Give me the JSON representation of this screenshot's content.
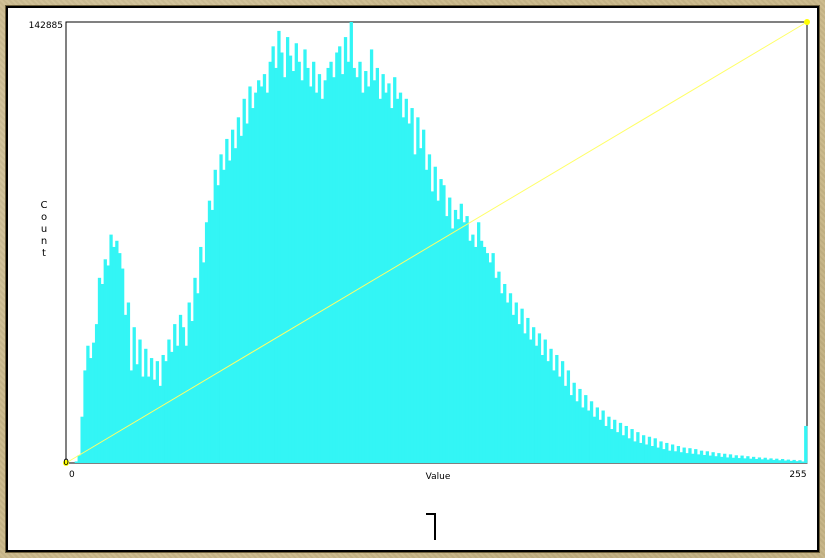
{
  "chart_data": {
    "type": "bar",
    "xlabel": "Value",
    "ylabel": "Count",
    "x_range": [
      0,
      255
    ],
    "y_range": [
      0,
      142885
    ],
    "x_tick_labels": [
      "0",
      "255"
    ],
    "y_tick_labels": [
      "0",
      "142885"
    ],
    "bar_color": "#33f5f5",
    "curve_color": "#ffff66",
    "curve": [
      [
        0,
        0
      ],
      [
        255,
        142885
      ]
    ],
    "series": [
      {
        "values": [
          0,
          0,
          0,
          500,
          2500,
          15000,
          30000,
          38000,
          34000,
          39000,
          45000,
          60000,
          58000,
          66000,
          64000,
          74000,
          70000,
          72000,
          68000,
          63000,
          48000,
          52000,
          30000,
          44000,
          32000,
          40000,
          28000,
          37000,
          28000,
          34000,
          27000,
          33000,
          25000,
          35000,
          33000,
          40000,
          36000,
          45000,
          38000,
          48000,
          44000,
          38000,
          52000,
          46000,
          60000,
          55000,
          70000,
          65000,
          78000,
          85000,
          82000,
          95000,
          90000,
          100000,
          95000,
          105000,
          98000,
          108000,
          102000,
          112000,
          106000,
          118000,
          110000,
          122000,
          115000,
          120000,
          124000,
          122000,
          126000,
          120000,
          130000,
          135000,
          128000,
          140000,
          133000,
          125000,
          138000,
          132000,
          127000,
          136000,
          130000,
          124000,
          134000,
          128000,
          122000,
          130000,
          120000,
          126000,
          118000,
          124000,
          128000,
          130000,
          125000,
          133000,
          135000,
          126000,
          138000,
          130000,
          142885,
          128000,
          125000,
          130000,
          120000,
          127000,
          122000,
          134000,
          124000,
          128000,
          118000,
          126000,
          120000,
          123000,
          115000,
          125000,
          118000,
          120000,
          112000,
          118000,
          110000,
          115000,
          100000,
          112000,
          102000,
          108000,
          95000,
          100000,
          88000,
          96000,
          85000,
          92000,
          90000,
          80000,
          86000,
          76000,
          82000,
          79000,
          84000,
          78000,
          80000,
          72000,
          74000,
          70000,
          78000,
          72000,
          70000,
          68000,
          65000,
          68000,
          60000,
          62000,
          55000,
          58000,
          52000,
          55000,
          48000,
          52000,
          45000,
          50000,
          42000,
          47000,
          40000,
          44000,
          38000,
          42000,
          35000,
          40000,
          33000,
          37000,
          30000,
          35000,
          28000,
          33000,
          25000,
          30000,
          22000,
          26000,
          20000,
          24000,
          18000,
          22000,
          17000,
          20000,
          15000,
          18000,
          14000,
          17000,
          12000,
          15000,
          11000,
          14000,
          10000,
          13000,
          9000,
          12000,
          8000,
          11000,
          7000,
          10000,
          6500,
          9000,
          6000,
          8500,
          5500,
          8000,
          5000,
          7000,
          4500,
          6500,
          4000,
          6000,
          3800,
          5500,
          3500,
          5000,
          3200,
          4800,
          3000,
          4500,
          2800,
          4000,
          2600,
          3800,
          2400,
          3500,
          2200,
          3200,
          2000,
          3000,
          1800,
          2800,
          1700,
          2500,
          1600,
          2400,
          1500,
          2200,
          1400,
          2000,
          1300,
          1800,
          1200,
          1700,
          1100,
          1500,
          1000,
          1400,
          900,
          1300,
          800,
          1100,
          700,
          1000,
          600,
          900,
          500,
          12000
        ]
      }
    ]
  }
}
